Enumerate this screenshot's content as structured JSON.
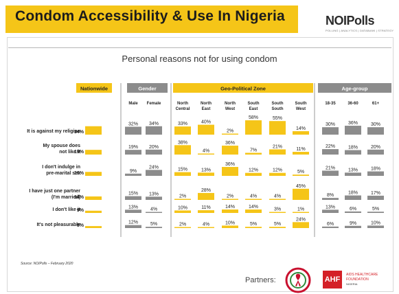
{
  "header": {
    "title": "Condom Accessibility & Use In Nigeria"
  },
  "logo": {
    "name": "NOIPolls",
    "tagline": "POLLING | ANALYTICS | DATABANK | STRATEGY"
  },
  "subtitle": "Personal reasons not for using condom",
  "footer": {
    "source": "Source: NOIPolls – February 2020",
    "partners_label": "Partners:",
    "partner2": {
      "abbr": "AHF",
      "line1": "AIDS HEALTHCARE",
      "line2": "FOUNDATION",
      "line3": "NIGERIA"
    }
  },
  "colors": {
    "accent": "#f5c518",
    "gray": "#8c8c8c",
    "text": "#222222"
  },
  "chart_data": {
    "type": "bar",
    "groups": [
      {
        "name": "Nationwide",
        "style": "accent",
        "columns": [
          ""
        ]
      },
      {
        "name": "Gender",
        "style": "gray",
        "columns": [
          "Male",
          "Female"
        ]
      },
      {
        "name": "Geo-Political Zone",
        "style": "accent",
        "columns": [
          "North Central",
          "North East",
          "North West",
          "South East",
          "South South",
          "South West"
        ]
      },
      {
        "name": "Age-group",
        "style": "gray",
        "columns": [
          "18-35",
          "36-60",
          "61+"
        ]
      }
    ],
    "categories": [
      "It is against my religion",
      "My spouse does not like it",
      "I don't indulge in pre-marital sex",
      "I have just one partner (I'm married)",
      "I don't like it",
      "It's not pleasurable"
    ],
    "category_lines": [
      [
        "It is against my religion"
      ],
      [
        "My spouse does",
        "not like it"
      ],
      [
        "I don't indulge in",
        "pre-marital sex"
      ],
      [
        "I have just one partner",
        "(I'm married)"
      ],
      [
        "I don't like it"
      ],
      [
        "It's not pleasurable"
      ]
    ],
    "column_lines": [
      [
        [
          ""
        ]
      ],
      [
        [
          "Male"
        ],
        [
          "Female"
        ]
      ],
      [
        [
          "North",
          "Central"
        ],
        [
          "North",
          "East"
        ],
        [
          "North",
          "West"
        ],
        [
          "South",
          "East"
        ],
        [
          "South",
          "South"
        ],
        [
          "South",
          "West"
        ]
      ],
      [
        [
          "18-35"
        ],
        [
          "36-60"
        ],
        [
          "61+"
        ]
      ]
    ],
    "series": [
      {
        "name": "Nationwide",
        "values": [
          34,
          19,
          16,
          14,
          9,
          8
        ]
      },
      {
        "name": "Male",
        "values": [
          32,
          19,
          9,
          15,
          13,
          12
        ]
      },
      {
        "name": "Female",
        "values": [
          34,
          20,
          24,
          13,
          4,
          5
        ]
      },
      {
        "name": "North Central",
        "values": [
          33,
          38,
          15,
          2,
          10,
          2
        ]
      },
      {
        "name": "North East",
        "values": [
          40,
          4,
          13,
          28,
          11,
          4
        ]
      },
      {
        "name": "North West",
        "values": [
          2,
          36,
          36,
          2,
          14,
          10
        ]
      },
      {
        "name": "South East",
        "values": [
          58,
          7,
          12,
          4,
          14,
          5
        ]
      },
      {
        "name": "South South",
        "values": [
          55,
          21,
          12,
          4,
          3,
          5
        ]
      },
      {
        "name": "South West",
        "values": [
          14,
          11,
          5,
          45,
          1,
          24
        ]
      },
      {
        "name": "18-35",
        "values": [
          30,
          22,
          21,
          8,
          13,
          6
        ]
      },
      {
        "name": "36-60",
        "values": [
          36,
          18,
          13,
          18,
          6,
          9
        ]
      },
      {
        "name": "61+",
        "values": [
          30,
          20,
          18,
          17,
          5,
          10
        ]
      }
    ],
    "value_suffix": "%",
    "legend": "none",
    "grid": false
  }
}
